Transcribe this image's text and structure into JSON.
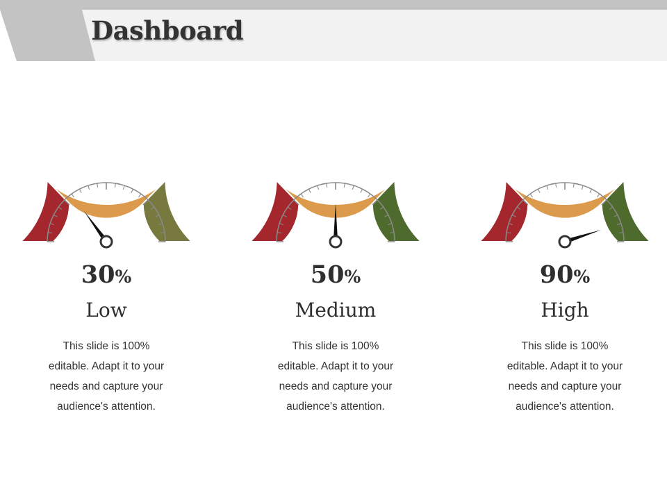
{
  "header": {
    "title": "Dashboard"
  },
  "colors": {
    "band_low": "#a4272d",
    "band_mid": "#dc9b4c",
    "band_high_1": "#77793e",
    "band_high_2": "#4e6a2c",
    "needle": "#111111",
    "dial_line": "#8a8a8a",
    "header_light": "#f2f2f2",
    "header_dark": "#c3c3c3"
  },
  "gauges": [
    {
      "value_num": "30",
      "value_suffix": "%",
      "value": 30,
      "level": "Low",
      "description": "This slide is 100% editable. Adapt it to your needs and capture your audience's attention.",
      "high_band_color": "#77793e"
    },
    {
      "value_num": "50",
      "value_suffix": "%",
      "value": 50,
      "level": "Medium",
      "description": "This slide is 100% editable. Adapt it to your needs and capture your audience's attention.",
      "high_band_color": "#4e6a2c"
    },
    {
      "value_num": "90",
      "value_suffix": "%",
      "value": 90,
      "level": "High",
      "description": "This slide is 100% editable. Adapt it to your needs and capture your audience's attention.",
      "high_band_color": "#4e6a2c"
    }
  ]
}
